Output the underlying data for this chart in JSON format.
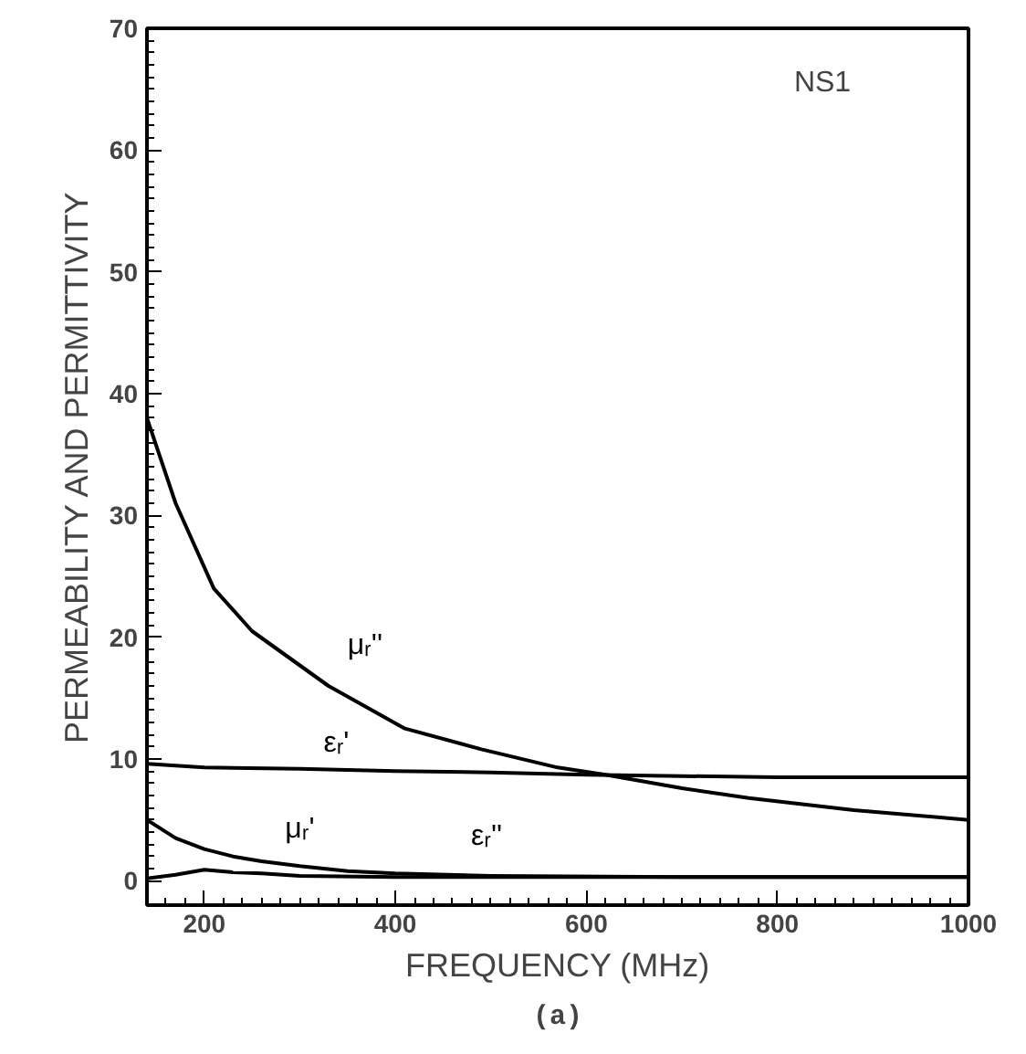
{
  "chart_data": {
    "type": "line",
    "xlabel": "FREQUENCY (MHz)",
    "ylabel": "PERMEABILITY AND PERMITTIVITY",
    "xlim": [
      140,
      1000
    ],
    "ylim": [
      -2,
      70
    ],
    "xticks": [
      200,
      400,
      600,
      800,
      1000
    ],
    "yticks": [
      0,
      10,
      20,
      30,
      40,
      50,
      60,
      70
    ],
    "grid": false,
    "legend": false,
    "marker": "none",
    "line_style": "solid",
    "series": [
      {
        "name": "μᵣ''",
        "color": "#000000",
        "x": [
          140,
          170,
          210,
          250,
          330,
          410,
          490,
          570,
          620,
          700,
          770,
          880,
          1000
        ],
        "values": [
          38,
          31,
          24,
          20.5,
          16,
          12.5,
          10.8,
          9.3,
          8.7,
          7.6,
          6.8,
          5.8,
          5
        ]
      },
      {
        "name": "εᵣ'",
        "color": "#000000",
        "x": [
          140,
          200,
          300,
          400,
          500,
          600,
          700,
          800,
          1000
        ],
        "values": [
          9.6,
          9.3,
          9.2,
          9.0,
          8.9,
          8.7,
          8.6,
          8.5,
          8.5
        ]
      },
      {
        "name": "μᵣ'",
        "color": "#000000",
        "x": [
          140,
          170,
          200,
          230,
          260,
          300,
          350,
          400,
          500,
          700,
          1000
        ],
        "values": [
          5,
          3.5,
          2.6,
          2.0,
          1.6,
          1.2,
          0.8,
          0.6,
          0.4,
          0.3,
          0.3
        ]
      },
      {
        "name": "εᵣ''",
        "color": "#000000",
        "x": [
          140,
          170,
          200,
          230,
          260,
          300,
          400,
          600,
          1000
        ],
        "values": [
          0.2,
          0.5,
          0.9,
          0.7,
          0.6,
          0.4,
          0.3,
          0.3,
          0.3
        ]
      }
    ],
    "annotations": [
      "NS1",
      "(a)"
    ]
  }
}
